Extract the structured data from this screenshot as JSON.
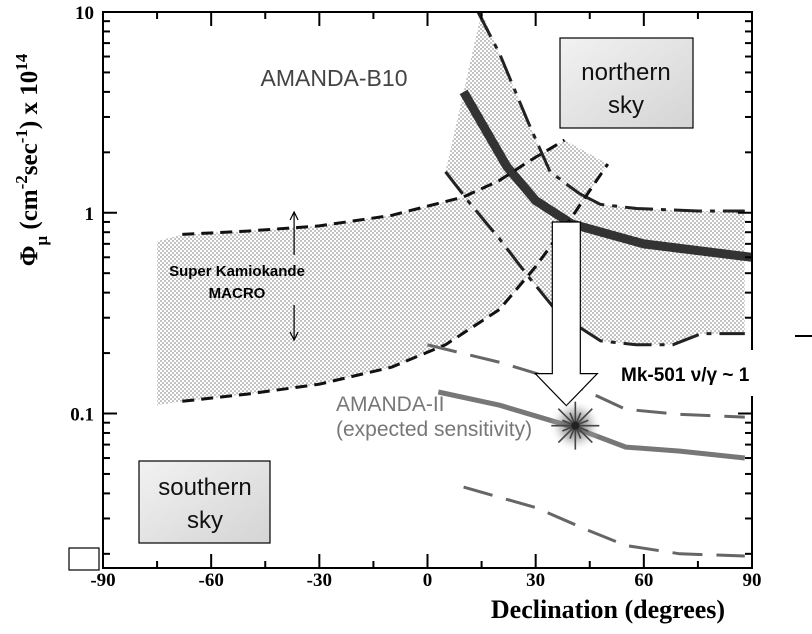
{
  "chart_data": {
    "type": "line",
    "title": "",
    "xlabel": "Declination (degrees)",
    "ylabel": "Φ_μ (cm^-2 sec^-1) x 10^14",
    "ylabel_parts": {
      "phi": "Φ",
      "sub": "μ",
      "open": " (cm",
      "exp1": "-2",
      "mid": "sec",
      "exp2": "-1",
      "close": ") x 10",
      "exp3": "14"
    },
    "xlim": [
      -90,
      90
    ],
    "ylim": [
      0.017,
      10
    ],
    "yscale": "log",
    "x_ticks": [
      -90,
      -60,
      -30,
      0,
      30,
      60,
      90
    ],
    "x_tick_labels": [
      "-90",
      "-60",
      "-30",
      "0",
      "30",
      "60",
      "90"
    ],
    "y_ticks": [
      0.1,
      1,
      10
    ],
    "y_tick_labels": [
      "0.1",
      "1",
      "10"
    ],
    "grid": false,
    "series": [
      {
        "name": "AMANDA-B10",
        "style": "thick-solid",
        "color": "#333333",
        "x": [
          10,
          15,
          22,
          30,
          40,
          60,
          90
        ],
        "y": [
          4.0,
          2.8,
          1.7,
          1.15,
          0.88,
          0.7,
          0.6
        ]
      },
      {
        "name": "",
        "style": "dash-dot",
        "color": "#222222",
        "x": [
          14,
          20,
          28,
          34,
          42
        ],
        "y": [
          10,
          6.2,
          2.8,
          1.6,
          1.25
        ]
      },
      {
        "name": "",
        "style": "dash-dot",
        "color": "#222222",
        "x": [
          42,
          48,
          58,
          75,
          88
        ],
        "y": [
          1.25,
          1.1,
          1.05,
          1.02,
          1.02
        ]
      },
      {
        "name": "",
        "style": "dash-dot",
        "color": "#222222",
        "x": [
          5,
          12,
          20,
          28,
          36,
          42
        ],
        "y": [
          1.6,
          1.1,
          0.74,
          0.48,
          0.32,
          0.27
        ]
      },
      {
        "name": "",
        "style": "dash-dot",
        "color": "#222222",
        "x": [
          42,
          48,
          58,
          68,
          76,
          88
        ],
        "y": [
          0.27,
          0.23,
          0.22,
          0.22,
          0.25,
          0.25
        ]
      },
      {
        "name": "",
        "style": "dash",
        "color": "#111111",
        "x": [
          -68,
          -50,
          -30,
          -10,
          10,
          20,
          28,
          38
        ],
        "y": [
          0.78,
          0.81,
          0.86,
          0.97,
          1.2,
          1.45,
          1.8,
          2.3
        ]
      },
      {
        "name": "",
        "style": "dash",
        "color": "#111111",
        "x": [
          -68,
          -50,
          -30,
          -10,
          5,
          20,
          30,
          40,
          50
        ],
        "y": [
          0.115,
          0.125,
          0.14,
          0.17,
          0.22,
          0.33,
          0.54,
          0.95,
          1.75
        ]
      },
      {
        "name": "AMANDA-II",
        "style": "solid",
        "color": "#777777",
        "x": [
          3,
          20,
          40,
          55,
          70,
          88
        ],
        "y": [
          0.128,
          0.11,
          0.086,
          0.068,
          0.065,
          0.06
        ]
      },
      {
        "name": "",
        "style": "long-dash",
        "color": "#666666",
        "x": [
          0,
          20,
          40,
          55,
          70,
          88
        ],
        "y": [
          0.22,
          0.18,
          0.14,
          0.105,
          0.099,
          0.096
        ]
      },
      {
        "name": "",
        "style": "long-dash",
        "color": "#666666",
        "x": [
          10,
          30,
          45,
          55,
          70,
          88
        ],
        "y": [
          0.043,
          0.034,
          0.026,
          0.022,
          0.02,
          0.0195
        ]
      }
    ],
    "bands": [
      {
        "name": "AMANDA-B10 band",
        "upper": {
          "x": [
            15,
            20,
            28,
            34,
            42,
            48,
            58,
            75,
            88
          ],
          "y": [
            10,
            6.2,
            2.8,
            1.6,
            1.25,
            1.1,
            1.05,
            1.02,
            1.02
          ]
        },
        "lower": {
          "x": [
            5,
            12,
            20,
            28,
            36,
            42,
            48,
            58,
            68,
            76,
            88
          ],
          "y": [
            1.6,
            1.1,
            0.74,
            0.48,
            0.32,
            0.27,
            0.23,
            0.22,
            0.22,
            0.25,
            0.25
          ]
        }
      },
      {
        "name": "Super Kamiokande MACRO band",
        "upper": {
          "x": [
            -75,
            -68,
            -50,
            -30,
            -10,
            10,
            20,
            28,
            38
          ],
          "y": [
            0.72,
            0.78,
            0.81,
            0.86,
            0.97,
            1.2,
            1.45,
            1.8,
            2.3
          ]
        },
        "lower": {
          "x": [
            -75,
            -68,
            -50,
            -30,
            -10,
            5,
            20,
            30,
            40,
            50
          ],
          "y": [
            0.11,
            0.115,
            0.125,
            0.14,
            0.17,
            0.22,
            0.33,
            0.54,
            0.95,
            1.75
          ]
        }
      }
    ],
    "annotations": [
      {
        "id": "b10",
        "text": "AMANDA-B10",
        "x": -15,
        "y": 4.3
      },
      {
        "id": "superk",
        "text": "Super Kamiokande",
        "x": -35,
        "y": 0.33
      },
      {
        "id": "macro",
        "text": "MACRO",
        "x": -35,
        "y": 0.24
      },
      {
        "id": "amanda2",
        "text": "AMANDA-II",
        "x": 26,
        "y": 0.073
      },
      {
        "id": "expected",
        "text": "(expected sensitivity)",
        "x": 26,
        "y": 0.055
      },
      {
        "id": "mk501",
        "text": "Mk-501 ν/γ ~ 1",
        "x": 75,
        "y": 0.092
      }
    ],
    "source_marker": {
      "name": "Mk-501",
      "x": 41,
      "y": 0.087
    },
    "boxes": {
      "northern": [
        "northern",
        "sky"
      ],
      "southern": [
        "southern",
        "sky"
      ]
    },
    "colors": {
      "band_fill": "#b8b8b8",
      "box_fill": "#e6e6e6",
      "amanda2": "#777777"
    }
  }
}
